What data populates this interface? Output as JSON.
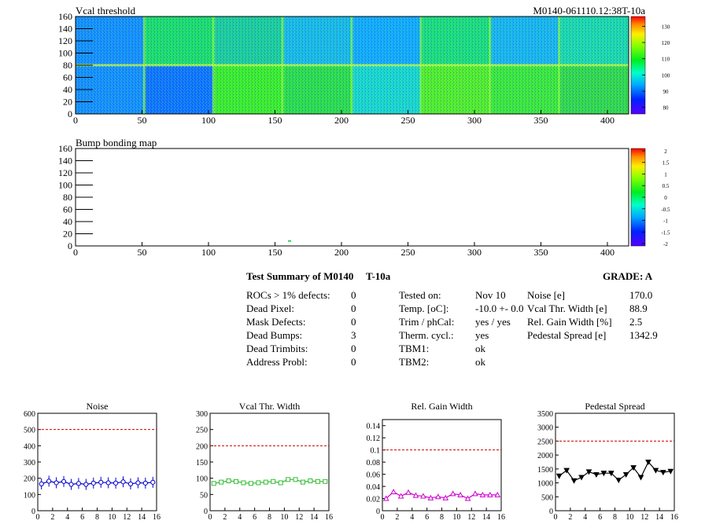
{
  "maps": [
    {
      "title": "Vcal threshold",
      "id_label": "M0140-061110.12:38T-10a",
      "x_ticks": [
        "0",
        "50",
        "100",
        "150",
        "200",
        "250",
        "300",
        "350",
        "400"
      ],
      "y_ticks": [
        "0",
        "20",
        "40",
        "60",
        "80",
        "100",
        "120",
        "140",
        "160"
      ],
      "palette_ticks": [
        "80",
        "90",
        "100",
        "110",
        "120",
        "130"
      ]
    },
    {
      "title": "Bump bonding map",
      "x_ticks": [
        "0",
        "50",
        "100",
        "150",
        "200",
        "250",
        "300",
        "350",
        "400"
      ],
      "y_ticks": [
        "0",
        "20",
        "40",
        "60",
        "80",
        "100",
        "120",
        "140",
        "160"
      ],
      "palette_ticks": [
        "-2",
        "-1.5",
        "-1",
        "-0.5",
        "0",
        "0.5",
        "1",
        "1.5",
        "2"
      ]
    }
  ],
  "summary": {
    "title": "Test Summary of M0140",
    "temp_tag": "T-10a",
    "grade": "GRADE:  A",
    "defects": [
      {
        "label": "ROCs > 1% defects:",
        "value": "0"
      },
      {
        "label": "Dead Pixel:",
        "value": "0"
      },
      {
        "label": "Mask Defects:",
        "value": "0"
      },
      {
        "label": "Dead Bumps:",
        "value": "3"
      },
      {
        "label": "Dead Trimbits:",
        "value": "0"
      },
      {
        "label": "Address Probl:",
        "value": "0"
      }
    ],
    "conditions": [
      {
        "label": "Tested on:",
        "value": "Nov 10"
      },
      {
        "label": "Temp. [oC]:",
        "value": "-10.0 +- 0.0"
      },
      {
        "label": "Trim / phCal:",
        "value": "yes / yes"
      },
      {
        "label": "Therm. cycl.:",
        "value": "yes"
      },
      {
        "label": "TBM1:",
        "value": "ok"
      },
      {
        "label": "TBM2:",
        "value": "ok"
      }
    ],
    "results": [
      {
        "label": "Noise [e]",
        "value": "170.0"
      },
      {
        "label": "Vcal Thr. Width [e]",
        "value": "88.9"
      },
      {
        "label": "Rel. Gain Width [%]",
        "value": "2.5"
      },
      {
        "label": "Pedestal Spread [e]",
        "value": "1342.9"
      }
    ]
  },
  "chart_data": [
    {
      "type": "line",
      "title": "Noise",
      "x": [
        0,
        1,
        2,
        3,
        4,
        5,
        6,
        7,
        8,
        9,
        10,
        11,
        12,
        13,
        14,
        15
      ],
      "values": [
        165,
        182,
        172,
        180,
        162,
        168,
        162,
        170,
        175,
        172,
        170,
        178,
        165,
        172,
        170,
        175
      ],
      "xlim": [
        0,
        16
      ],
      "ylim": [
        0,
        600
      ],
      "y_ticks": [
        "0",
        "100",
        "200",
        "300",
        "400",
        "500",
        "600"
      ],
      "x_ticks": [
        "0",
        "2",
        "4",
        "6",
        "8",
        "10",
        "12",
        "14",
        "16"
      ],
      "threshold": 500,
      "color": "#0000cc",
      "marker": "circle"
    },
    {
      "type": "line",
      "title": "Vcal Thr. Width",
      "x": [
        0,
        1,
        2,
        3,
        4,
        5,
        6,
        7,
        8,
        9,
        10,
        11,
        12,
        13,
        14,
        15
      ],
      "values": [
        84,
        88,
        92,
        90,
        86,
        84,
        86,
        88,
        90,
        86,
        96,
        96,
        88,
        92,
        90,
        90
      ],
      "xlim": [
        0,
        16
      ],
      "ylim": [
        0,
        300
      ],
      "y_ticks": [
        "0",
        "50",
        "100",
        "150",
        "200",
        "250",
        "300"
      ],
      "x_ticks": [
        "0",
        "2",
        "4",
        "6",
        "8",
        "10",
        "12",
        "14",
        "16"
      ],
      "threshold": 200,
      "color": "#33bb33",
      "marker": "square"
    },
    {
      "type": "line",
      "title": "Rel. Gain Width",
      "x": [
        0,
        1,
        2,
        3,
        4,
        5,
        6,
        7,
        8,
        9,
        10,
        11,
        12,
        13,
        14,
        15
      ],
      "values": [
        0.02,
        0.031,
        0.024,
        0.03,
        0.025,
        0.024,
        0.021,
        0.023,
        0.021,
        0.028,
        0.026,
        0.02,
        0.028,
        0.026,
        0.026,
        0.026
      ],
      "xlim": [
        0,
        16
      ],
      "ylim": [
        0,
        0.15
      ],
      "y_ticks": [
        "0",
        "0.02",
        "0.04",
        "0.06",
        "0.08",
        "0.1",
        "0.12",
        "0.14"
      ],
      "y_tick_values": [
        0,
        0.02,
        0.04,
        0.06,
        0.08,
        0.1,
        0.12,
        0.14
      ],
      "x_ticks": [
        "0",
        "2",
        "4",
        "6",
        "8",
        "10",
        "12",
        "14",
        "16"
      ],
      "threshold": 0.1,
      "color": "#cc00cc",
      "marker": "triangle"
    },
    {
      "type": "line",
      "title": "Pedestal Spread",
      "x": [
        0,
        1,
        2,
        3,
        4,
        5,
        6,
        7,
        8,
        9,
        10,
        11,
        12,
        13,
        14,
        15
      ],
      "values": [
        1250,
        1450,
        1080,
        1200,
        1400,
        1300,
        1350,
        1350,
        1100,
        1300,
        1550,
        1200,
        1750,
        1450,
        1380,
        1420
      ],
      "xlim": [
        0,
        16
      ],
      "ylim": [
        0,
        3500
      ],
      "y_ticks": [
        "0",
        "500",
        "1000",
        "1500",
        "2000",
        "2500",
        "3000",
        "3500"
      ],
      "x_ticks": [
        "0",
        "2",
        "4",
        "6",
        "8",
        "10",
        "12",
        "14",
        "16"
      ],
      "threshold": 2500,
      "color": "#000000",
      "marker": "triangle-down"
    }
  ]
}
